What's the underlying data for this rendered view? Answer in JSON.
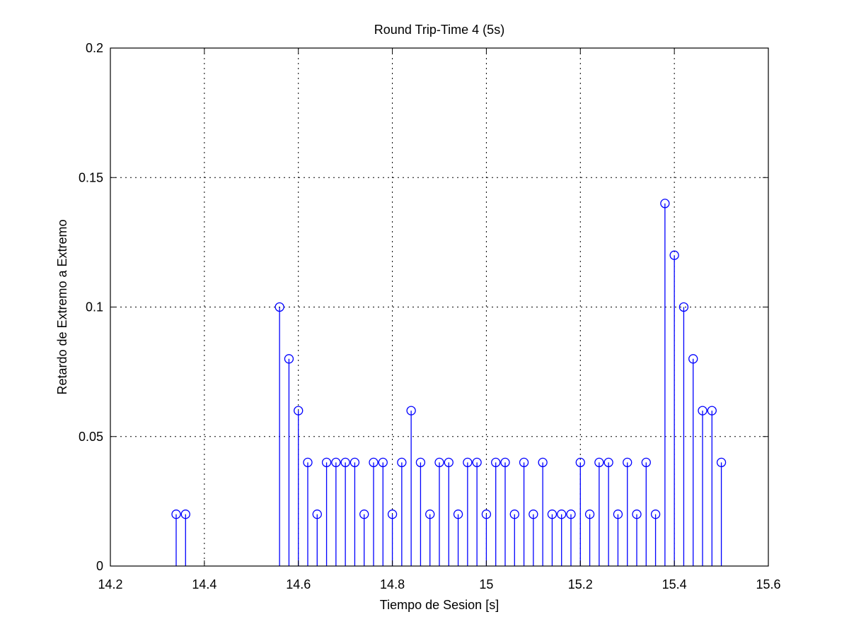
{
  "chart_data": {
    "type": "stem",
    "title": "Round Trip-Time 4 (5s)",
    "xlabel": "Tiempo de Sesion [s]",
    "ylabel": "Retardo de Extremo a Extremo",
    "xlim": [
      14.2,
      15.6
    ],
    "ylim": [
      0,
      0.2
    ],
    "xticks": [
      14.2,
      14.4,
      14.6,
      14.8,
      15,
      15.2,
      15.4,
      15.6
    ],
    "xtick_labels": [
      "14.2",
      "14.4",
      "14.6",
      "14.8",
      "15",
      "15.2",
      "15.4",
      "15.6"
    ],
    "yticks": [
      0,
      0.05,
      0.1,
      0.15,
      0.2
    ],
    "ytick_labels": [
      "0",
      "0.05",
      "0.1",
      "0.15",
      "0.2"
    ],
    "grid": true,
    "colors": {
      "series": "#0000ff",
      "axes": "#000000"
    },
    "x": [
      14.34,
      14.36,
      14.56,
      14.58,
      14.6,
      14.62,
      14.64,
      14.66,
      14.68,
      14.7,
      14.72,
      14.74,
      14.76,
      14.78,
      14.8,
      14.82,
      14.84,
      14.86,
      14.88,
      14.9,
      14.92,
      14.94,
      14.96,
      14.98,
      15.0,
      15.02,
      15.04,
      15.06,
      15.08,
      15.1,
      15.12,
      15.14,
      15.16,
      15.18,
      15.2,
      15.22,
      15.24,
      15.26,
      15.28,
      15.3,
      15.32,
      15.34,
      15.36,
      15.38,
      15.4,
      15.42,
      15.44,
      15.46,
      15.48,
      15.5
    ],
    "y": [
      0.02,
      0.02,
      0.1,
      0.08,
      0.06,
      0.04,
      0.02,
      0.04,
      0.04,
      0.04,
      0.04,
      0.02,
      0.04,
      0.04,
      0.02,
      0.04,
      0.06,
      0.04,
      0.02,
      0.04,
      0.04,
      0.02,
      0.04,
      0.04,
      0.02,
      0.04,
      0.04,
      0.02,
      0.04,
      0.02,
      0.04,
      0.02,
      0.02,
      0.02,
      0.04,
      0.02,
      0.04,
      0.04,
      0.02,
      0.04,
      0.02,
      0.04,
      0.02,
      0.14,
      0.12,
      0.1,
      0.08,
      0.06,
      0.06,
      0.04
    ]
  }
}
